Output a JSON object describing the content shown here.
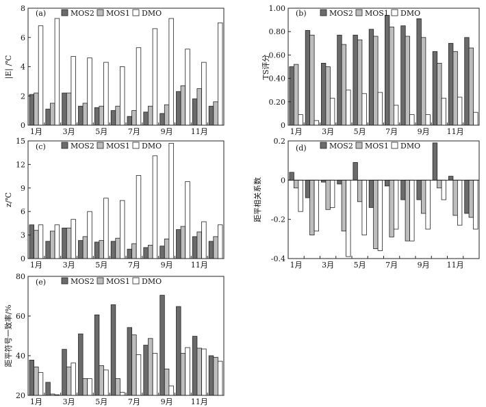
{
  "colors": {
    "MOS2": "#6b6b6b",
    "MOS1": "#bdbdbd",
    "DMO": "#ffffff",
    "outline": "#222222"
  },
  "chart_data": [
    {
      "id": "a",
      "type": "bar",
      "panel_label": "(a)",
      "ylabel": "|E| /℃",
      "ylim": [
        0,
        8
      ],
      "yticks": [
        "0",
        "2",
        "4",
        "6",
        "8"
      ],
      "categories": [
        "1月",
        "2月",
        "3月",
        "4月",
        "5月",
        "6月",
        "7月",
        "8月",
        "9月",
        "10月",
        "11月",
        "12月"
      ],
      "xtick_labels": [
        "1月",
        "3月",
        "5月",
        "7月",
        "9月",
        "11月"
      ],
      "legend": [
        "MOS2",
        "MOS1",
        "DMO"
      ],
      "series": [
        {
          "name": "MOS2",
          "values": [
            2.1,
            1.1,
            2.2,
            1.3,
            1.2,
            1.0,
            0.6,
            0.9,
            0.8,
            2.3,
            1.8,
            1.3
          ]
        },
        {
          "name": "MOS1",
          "values": [
            2.2,
            1.5,
            2.2,
            1.5,
            1.3,
            1.3,
            1.0,
            1.3,
            1.4,
            2.7,
            2.5,
            1.6
          ]
        },
        {
          "name": "DMO",
          "values": [
            6.8,
            7.3,
            4.7,
            4.6,
            4.3,
            4.0,
            5.3,
            6.6,
            7.3,
            5.2,
            4.3,
            7.0
          ]
        }
      ]
    },
    {
      "id": "b",
      "type": "bar",
      "panel_label": "(b)",
      "ylabel": "TS评分",
      "ylim": [
        0,
        1.0
      ],
      "yticks": [
        "0",
        "0.20",
        "0.40",
        "0.60",
        "0.80",
        "1.00"
      ],
      "categories": [
        "1月",
        "2月",
        "3月",
        "4月",
        "5月",
        "6月",
        "7月",
        "8月",
        "9月",
        "10月",
        "11月",
        "12月"
      ],
      "xtick_labels": [
        "1月",
        "3月",
        "5月",
        "7月",
        "9月",
        "11月"
      ],
      "legend": [
        "MOS2",
        "MOS1",
        "DMO"
      ],
      "series": [
        {
          "name": "MOS2",
          "values": [
            0.5,
            0.81,
            0.53,
            0.77,
            0.77,
            0.82,
            0.94,
            0.85,
            0.91,
            0.63,
            0.7,
            0.75
          ]
        },
        {
          "name": "MOS1",
          "values": [
            0.52,
            0.77,
            0.5,
            0.69,
            0.73,
            0.76,
            0.84,
            0.76,
            0.75,
            0.53,
            0.63,
            0.66
          ]
        },
        {
          "name": "DMO",
          "values": [
            0.09,
            0.04,
            0.23,
            0.3,
            0.27,
            0.28,
            0.17,
            0.09,
            0.09,
            0.23,
            0.24,
            0.11
          ]
        }
      ]
    },
    {
      "id": "c",
      "type": "bar",
      "panel_label": "(c)",
      "ylabel": "z/℃",
      "ylim": [
        0,
        15
      ],
      "yticks": [
        "0",
        "3",
        "6",
        "9",
        "12",
        "15"
      ],
      "categories": [
        "1月",
        "2月",
        "3月",
        "4月",
        "5月",
        "6月",
        "7月",
        "8月",
        "9月",
        "10月",
        "11月",
        "12月"
      ],
      "xtick_labels": [
        "1月",
        "3月",
        "5月",
        "7月",
        "9月",
        "11月"
      ],
      "legend": [
        "MOS2",
        "MOS1",
        "DMO"
      ],
      "series": [
        {
          "name": "MOS2",
          "values": [
            4.3,
            2.2,
            3.9,
            2.3,
            2.1,
            2.2,
            1.2,
            1.4,
            1.6,
            3.7,
            2.8,
            2.2
          ]
        },
        {
          "name": "MOS1",
          "values": [
            3.6,
            3.5,
            3.9,
            2.8,
            2.3,
            2.6,
            1.9,
            1.7,
            2.5,
            4.1,
            3.4,
            2.8
          ]
        },
        {
          "name": "DMO",
          "values": [
            4.3,
            4.3,
            5.0,
            6.0,
            7.7,
            7.4,
            10.6,
            13.1,
            14.7,
            9.8,
            4.7,
            4.3
          ]
        }
      ]
    },
    {
      "id": "d",
      "type": "bar",
      "panel_label": "(d)",
      "ylabel": "距平相关系数",
      "ylim": [
        -0.4,
        0.2
      ],
      "yticks": [
        "-0.4",
        "-0.2",
        "0",
        "0.2"
      ],
      "categories": [
        "1月",
        "2月",
        "3月",
        "4月",
        "5月",
        "6月",
        "7月",
        "8月",
        "9月",
        "10月",
        "11月",
        "12月"
      ],
      "xtick_labels": [
        "1月",
        "3月",
        "5月",
        "7月",
        "9月",
        "11月"
      ],
      "legend": [
        "MOS2",
        "MOS1",
        "DMO"
      ],
      "series": [
        {
          "name": "MOS2",
          "values": [
            0.04,
            -0.09,
            -0.01,
            -0.02,
            0.09,
            -0.14,
            -0.03,
            -0.1,
            -0.1,
            0.19,
            0.02,
            -0.17
          ]
        },
        {
          "name": "MOS1",
          "values": [
            -0.04,
            -0.28,
            -0.15,
            -0.26,
            -0.11,
            -0.35,
            -0.29,
            -0.31,
            -0.17,
            -0.04,
            -0.18,
            -0.19
          ]
        },
        {
          "name": "DMO",
          "values": [
            -0.16,
            -0.26,
            -0.14,
            -0.39,
            -0.28,
            -0.36,
            -0.25,
            -0.31,
            -0.25,
            -0.1,
            -0.23,
            -0.25
          ]
        }
      ]
    },
    {
      "id": "e",
      "type": "bar",
      "panel_label": "(e)",
      "ylabel": "距平符号一致率/%",
      "ylim": [
        20,
        80
      ],
      "yticks": [
        "20",
        "40",
        "60",
        "80"
      ],
      "categories": [
        "1月",
        "2月",
        "3月",
        "4月",
        "5月",
        "6月",
        "7月",
        "8月",
        "9月",
        "10月",
        "11月",
        "12月"
      ],
      "xtick_labels": [
        "1月",
        "3月",
        "5月",
        "7月",
        "9月",
        "11月"
      ],
      "legend": [
        "MOS2",
        "MOS1",
        "DMO"
      ],
      "series": [
        {
          "name": "MOS2",
          "values": [
            37.8,
            26.6,
            43.2,
            51.0,
            60.6,
            65.7,
            54.2,
            45.3,
            70.5,
            64.8,
            49.8,
            40.0
          ]
        },
        {
          "name": "MOS1",
          "values": [
            34.3,
            20.7,
            34.3,
            28.5,
            35.0,
            28.5,
            50.5,
            48.7,
            33.3,
            41.2,
            43.8,
            39.2
          ]
        },
        {
          "name": "DMO",
          "values": [
            31.5,
            20.3,
            36.3,
            28.5,
            32.8,
            21.5,
            40.5,
            41.2,
            24.8,
            44.1,
            43.4,
            37.2
          ]
        }
      ]
    }
  ]
}
